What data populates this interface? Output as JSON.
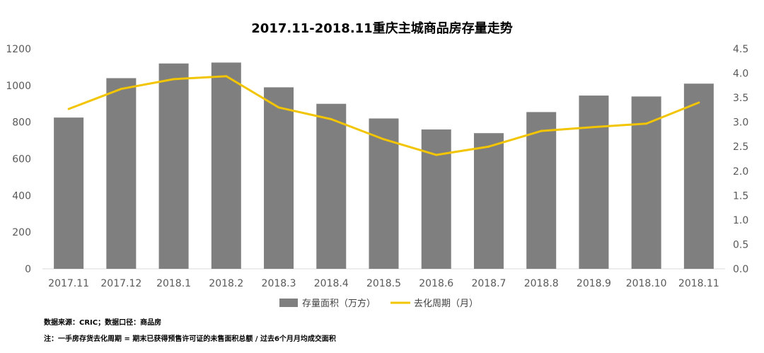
{
  "chart_data": {
    "type": "bar",
    "title": "2017.11-2018.11重庆主城商品房存量走势",
    "categories": [
      "2017.11",
      "2017.12",
      "2018.1",
      "2018.2",
      "2018.3",
      "2018.4",
      "2018.5",
      "2018.6",
      "2018.7",
      "2018.8",
      "2018.9",
      "2018.10",
      "2018.11"
    ],
    "series": [
      {
        "name": "存量面积（万方）",
        "type": "bar",
        "axis": "left",
        "color": "#7f7f7f",
        "values": [
          825,
          1040,
          1120,
          1125,
          990,
          900,
          820,
          760,
          740,
          855,
          945,
          940,
          1010
        ]
      },
      {
        "name": "去化周期（月）",
        "type": "line",
        "axis": "right",
        "color": "#f2c500",
        "values": [
          3.27,
          3.68,
          3.88,
          3.94,
          3.3,
          3.06,
          2.65,
          2.33,
          2.5,
          2.82,
          2.9,
          2.97,
          3.4
        ]
      }
    ],
    "y_left": {
      "min": 0,
      "max": 1200,
      "ticks": [
        "0",
        "200",
        "400",
        "600",
        "800",
        "1000",
        "1200"
      ]
    },
    "y_right": {
      "min": 0,
      "max": 4.5,
      "ticks": [
        "0.0",
        "0.5",
        "1.0",
        "1.5",
        "2.0",
        "2.5",
        "3.0",
        "3.5",
        "4.0",
        "4.5"
      ]
    },
    "legend_position": "bottom",
    "grid": false
  },
  "notes": {
    "source": "数据来源：CRIC；数据口径：商品房",
    "definition": "注：一手房存货去化周期 = 期末已获得预售许可证的未售面积总额 / 过去6个月月均成交面积"
  }
}
